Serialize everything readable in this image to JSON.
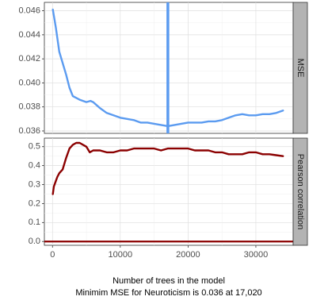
{
  "chart_data": [
    {
      "type": "line",
      "facet": "MSE",
      "x": [
        50,
        500,
        1000,
        2000,
        2500,
        3000,
        4000,
        5000,
        5600,
        6000,
        7000,
        8000,
        9000,
        10000,
        11000,
        12000,
        12500,
        13000,
        14000,
        15000,
        16000,
        17020,
        18000,
        19000,
        20000,
        21000,
        22000,
        23000,
        24000,
        25000,
        26000,
        27000,
        28000,
        29000,
        30000,
        31000,
        32000,
        33000,
        34000
      ],
      "series": [
        {
          "values": [
            0.0461,
            0.0446,
            0.0426,
            0.0407,
            0.0396,
            0.0389,
            0.0386,
            0.0384,
            0.0385,
            0.0384,
            0.0379,
            0.0375,
            0.0373,
            0.0371,
            0.037,
            0.0369,
            0.0368,
            0.0367,
            0.0367,
            0.0366,
            0.0365,
            0.0364,
            0.0365,
            0.0366,
            0.0367,
            0.0367,
            0.0367,
            0.0368,
            0.0368,
            0.0369,
            0.0371,
            0.0373,
            0.0374,
            0.0373,
            0.0373,
            0.0374,
            0.0374,
            0.0375,
            0.0377
          ],
          "color": "#5b9bf0"
        }
      ],
      "ytick_labels": [
        "0.036",
        "0.038",
        "0.040",
        "0.042",
        "0.044",
        "0.046"
      ],
      "yticks": [
        0.036,
        0.038,
        0.04,
        0.042,
        0.044,
        0.046
      ],
      "ylim": [
        0.0358,
        0.0467
      ],
      "xlim": [
        -1200,
        35500
      ],
      "vline_x": 17020,
      "vline_color": "#5b9bf0",
      "grid": true,
      "strip_label": "MSE"
    },
    {
      "type": "line",
      "facet": "Pearson correlation",
      "x": [
        50,
        200,
        400,
        700,
        1000,
        1500,
        2000,
        2500,
        3000,
        3500,
        4000,
        4500,
        5000,
        5500,
        6000,
        7000,
        8000,
        9000,
        10000,
        11000,
        12000,
        13000,
        14000,
        15000,
        16000,
        17000,
        18000,
        19000,
        20000,
        21000,
        22000,
        23000,
        24000,
        25000,
        26000,
        27000,
        28000,
        29000,
        30000,
        31000,
        32000,
        33000,
        34000
      ],
      "series": [
        {
          "values": [
            0.25,
            0.29,
            0.31,
            0.34,
            0.36,
            0.38,
            0.44,
            0.49,
            0.51,
            0.52,
            0.52,
            0.51,
            0.5,
            0.47,
            0.48,
            0.48,
            0.47,
            0.47,
            0.48,
            0.48,
            0.49,
            0.49,
            0.49,
            0.49,
            0.48,
            0.49,
            0.49,
            0.49,
            0.49,
            0.48,
            0.48,
            0.48,
            0.47,
            0.47,
            0.46,
            0.46,
            0.46,
            0.47,
            0.47,
            0.46,
            0.46,
            0.455,
            0.45
          ],
          "color": "#8b0000"
        }
      ],
      "hline_y": 0.0,
      "hline_color": "#8b0000",
      "ytick_labels": [
        "0.0",
        "0.1",
        "0.2",
        "0.3",
        "0.4",
        "0.5"
      ],
      "yticks": [
        0.0,
        0.1,
        0.2,
        0.3,
        0.4,
        0.5
      ],
      "ylim": [
        -0.02,
        0.545
      ],
      "xlim": [
        -1200,
        35500
      ],
      "grid": true,
      "strip_label": "Pearson correlation"
    }
  ],
  "xaxis": {
    "ticks": [
      0,
      10000,
      20000,
      30000
    ],
    "tick_labels": [
      "0",
      "10000",
      "20000",
      "30000"
    ],
    "title": "Number of trees in the model",
    "subtitle": "Minimim MSE for Neuroticism is 0.036 at 17,020"
  }
}
